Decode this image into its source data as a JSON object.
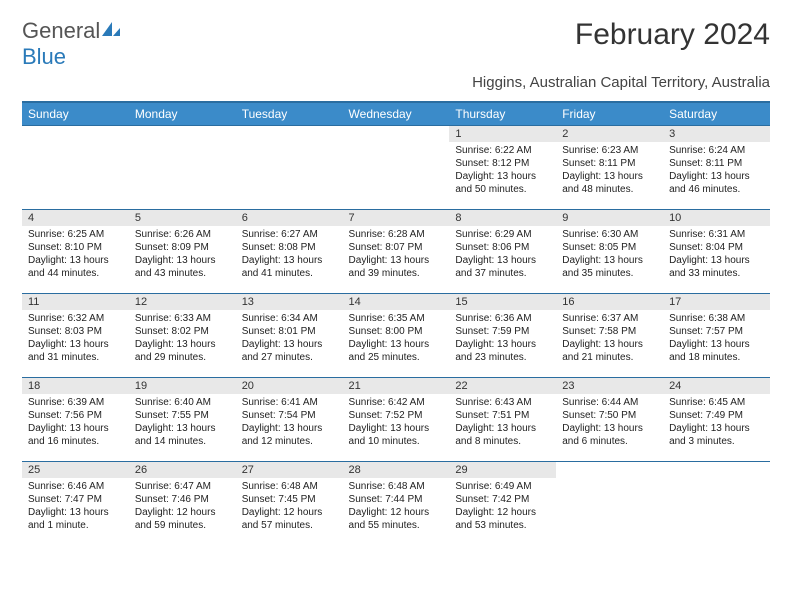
{
  "logo": {
    "part1": "General",
    "part2": "Blue"
  },
  "title": "February 2024",
  "subtitle": "Higgins, Australian Capital Territory, Australia",
  "colors": {
    "header_bg": "#3b8bc9",
    "header_border": "#2a6da0",
    "daynum_bg": "#e8e8e8",
    "logo_blue": "#2a7ab9"
  },
  "weekdays": [
    "Sunday",
    "Monday",
    "Tuesday",
    "Wednesday",
    "Thursday",
    "Friday",
    "Saturday"
  ],
  "weeks": [
    [
      null,
      null,
      null,
      null,
      {
        "n": "1",
        "sr": "6:22 AM",
        "ss": "8:12 PM",
        "dl": "13 hours and 50 minutes."
      },
      {
        "n": "2",
        "sr": "6:23 AM",
        "ss": "8:11 PM",
        "dl": "13 hours and 48 minutes."
      },
      {
        "n": "3",
        "sr": "6:24 AM",
        "ss": "8:11 PM",
        "dl": "13 hours and 46 minutes."
      }
    ],
    [
      {
        "n": "4",
        "sr": "6:25 AM",
        "ss": "8:10 PM",
        "dl": "13 hours and 44 minutes."
      },
      {
        "n": "5",
        "sr": "6:26 AM",
        "ss": "8:09 PM",
        "dl": "13 hours and 43 minutes."
      },
      {
        "n": "6",
        "sr": "6:27 AM",
        "ss": "8:08 PM",
        "dl": "13 hours and 41 minutes."
      },
      {
        "n": "7",
        "sr": "6:28 AM",
        "ss": "8:07 PM",
        "dl": "13 hours and 39 minutes."
      },
      {
        "n": "8",
        "sr": "6:29 AM",
        "ss": "8:06 PM",
        "dl": "13 hours and 37 minutes."
      },
      {
        "n": "9",
        "sr": "6:30 AM",
        "ss": "8:05 PM",
        "dl": "13 hours and 35 minutes."
      },
      {
        "n": "10",
        "sr": "6:31 AM",
        "ss": "8:04 PM",
        "dl": "13 hours and 33 minutes."
      }
    ],
    [
      {
        "n": "11",
        "sr": "6:32 AM",
        "ss": "8:03 PM",
        "dl": "13 hours and 31 minutes."
      },
      {
        "n": "12",
        "sr": "6:33 AM",
        "ss": "8:02 PM",
        "dl": "13 hours and 29 minutes."
      },
      {
        "n": "13",
        "sr": "6:34 AM",
        "ss": "8:01 PM",
        "dl": "13 hours and 27 minutes."
      },
      {
        "n": "14",
        "sr": "6:35 AM",
        "ss": "8:00 PM",
        "dl": "13 hours and 25 minutes."
      },
      {
        "n": "15",
        "sr": "6:36 AM",
        "ss": "7:59 PM",
        "dl": "13 hours and 23 minutes."
      },
      {
        "n": "16",
        "sr": "6:37 AM",
        "ss": "7:58 PM",
        "dl": "13 hours and 21 minutes."
      },
      {
        "n": "17",
        "sr": "6:38 AM",
        "ss": "7:57 PM",
        "dl": "13 hours and 18 minutes."
      }
    ],
    [
      {
        "n": "18",
        "sr": "6:39 AM",
        "ss": "7:56 PM",
        "dl": "13 hours and 16 minutes."
      },
      {
        "n": "19",
        "sr": "6:40 AM",
        "ss": "7:55 PM",
        "dl": "13 hours and 14 minutes."
      },
      {
        "n": "20",
        "sr": "6:41 AM",
        "ss": "7:54 PM",
        "dl": "13 hours and 12 minutes."
      },
      {
        "n": "21",
        "sr": "6:42 AM",
        "ss": "7:52 PM",
        "dl": "13 hours and 10 minutes."
      },
      {
        "n": "22",
        "sr": "6:43 AM",
        "ss": "7:51 PM",
        "dl": "13 hours and 8 minutes."
      },
      {
        "n": "23",
        "sr": "6:44 AM",
        "ss": "7:50 PM",
        "dl": "13 hours and 6 minutes."
      },
      {
        "n": "24",
        "sr": "6:45 AM",
        "ss": "7:49 PM",
        "dl": "13 hours and 3 minutes."
      }
    ],
    [
      {
        "n": "25",
        "sr": "6:46 AM",
        "ss": "7:47 PM",
        "dl": "13 hours and 1 minute."
      },
      {
        "n": "26",
        "sr": "6:47 AM",
        "ss": "7:46 PM",
        "dl": "12 hours and 59 minutes."
      },
      {
        "n": "27",
        "sr": "6:48 AM",
        "ss": "7:45 PM",
        "dl": "12 hours and 57 minutes."
      },
      {
        "n": "28",
        "sr": "6:48 AM",
        "ss": "7:44 PM",
        "dl": "12 hours and 55 minutes."
      },
      {
        "n": "29",
        "sr": "6:49 AM",
        "ss": "7:42 PM",
        "dl": "12 hours and 53 minutes."
      },
      null,
      null
    ]
  ],
  "labels": {
    "sunrise": "Sunrise:",
    "sunset": "Sunset:",
    "daylight": "Daylight:"
  }
}
